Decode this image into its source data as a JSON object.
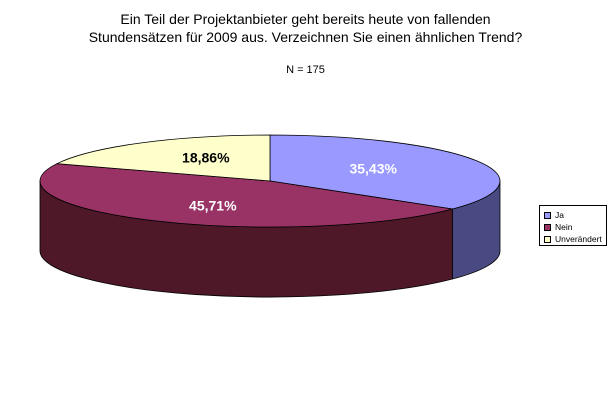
{
  "chart_data": {
    "type": "pie",
    "title_lines": [
      "Ein Teil der Projektanbieter geht bereits heute von fallenden",
      "Stundensätzen für 2009 aus. Verzeichnen Sie einen ähnlichen Trend?"
    ],
    "subtitle": "N = 175",
    "slices": [
      {
        "name": "Ja",
        "value": 35.43,
        "label": "35,43%",
        "color": "#9999ff",
        "side_color": "#4a4a82",
        "label_color": "#ffffff"
      },
      {
        "name": "Nein",
        "value": 45.71,
        "label": "45,71%",
        "color": "#993366",
        "side_color": "#4e1828",
        "label_color": "#ffffff"
      },
      {
        "name": "Unverändert",
        "value": 18.86,
        "label": "18,86%",
        "color": "#ffffcc",
        "side_color": "#c8c8a0",
        "label_color": "#000000"
      }
    ],
    "legend_position": "right",
    "three_d": true
  }
}
